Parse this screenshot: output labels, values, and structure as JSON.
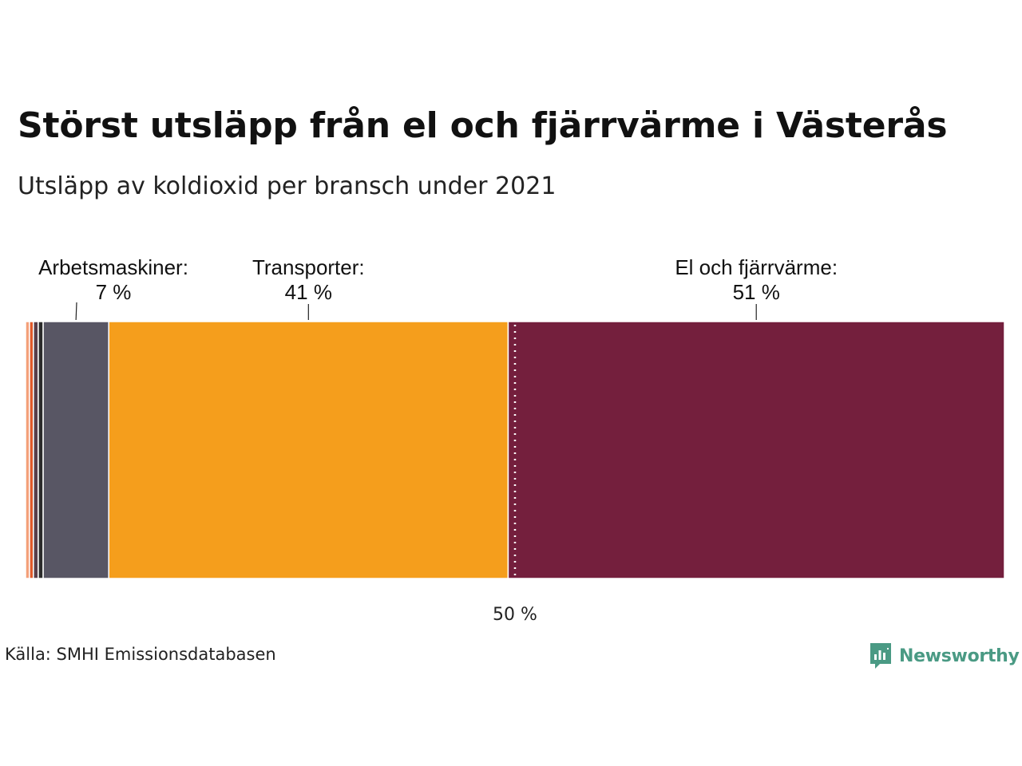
{
  "title": "Störst utsläpp från el och fjärrvärme i Västerås",
  "subtitle": "Utsläpp av koldioxid per bransch under 2021",
  "source": "Källa: SMHI Emissionsdatabasen",
  "brand": {
    "name": "Newsworthy",
    "icon": "newsworthy-logo-icon",
    "color": "#4a9a84"
  },
  "chart_data": {
    "type": "bar",
    "stacked": true,
    "orientation": "horizontal",
    "ylim": [
      0,
      100
    ],
    "segments": [
      {
        "value": 0.4,
        "color": "#f4a07a"
      },
      {
        "value": 0.4,
        "color": "#e05a2b"
      },
      {
        "value": 0.5,
        "color": "#5a3f4a"
      },
      {
        "value": 0.5,
        "color": "#2b2b2b"
      },
      {
        "label": "Arbetsmaskiner:",
        "value_label": "7 %",
        "value": 6.7,
        "color": "#585664"
      },
      {
        "label": "Transporter:",
        "value_label": "41 %",
        "value": 40.8,
        "color": "#f59e1c"
      },
      {
        "label": "El och fjärrvärme:",
        "value_label": "51 %",
        "value": 50.7,
        "color": "#741f3d"
      }
    ],
    "reference_line": {
      "value": 50,
      "label": "50 %"
    }
  }
}
